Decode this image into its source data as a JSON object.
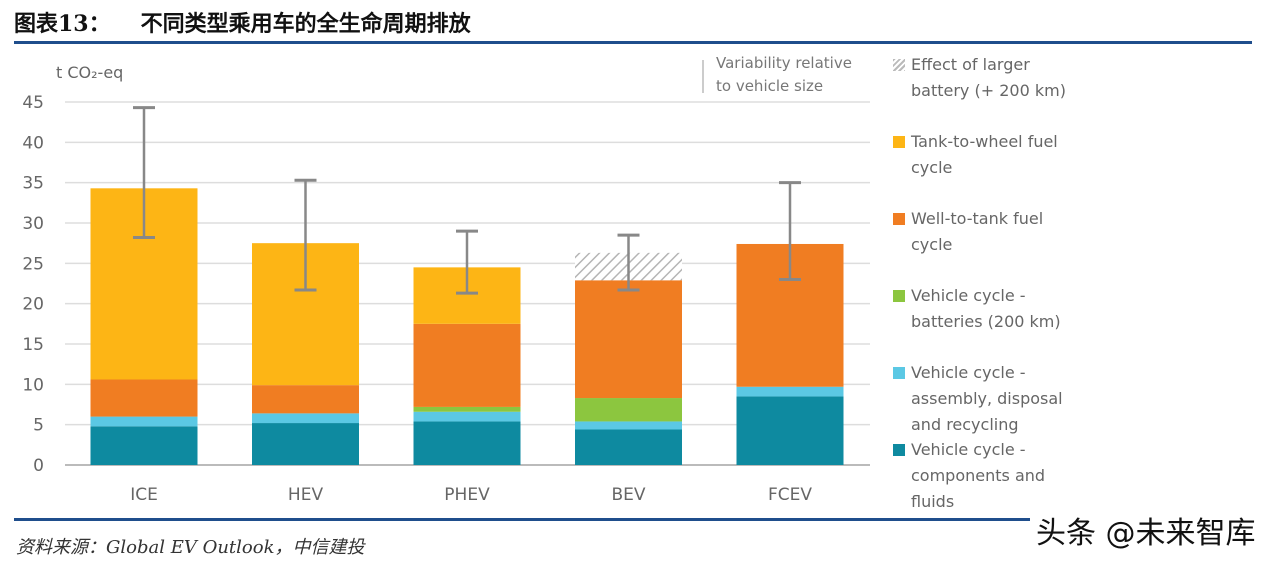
{
  "header": {
    "figure_label": "图表13：",
    "title": "不同类型乘用车的全生命周期排放"
  },
  "source": "资料来源：Global EV Outlook，中信建投",
  "watermark": "头条 @未来智库",
  "chart_data": {
    "type": "bar",
    "stacked": true,
    "title": "",
    "ylabel": "t CO₂-eq",
    "xlabel": "",
    "ylim": [
      0,
      45
    ],
    "yticks": [
      0,
      5,
      10,
      15,
      20,
      25,
      30,
      35,
      40,
      45
    ],
    "grid": true,
    "legend_position": "right",
    "categories": [
      "ICE",
      "HEV",
      "PHEV",
      "BEV",
      "FCEV"
    ],
    "series": [
      {
        "name": "Vehicle cycle -\ncomponents and\nfluids",
        "color": "#0e8aa0",
        "values": [
          4.8,
          5.2,
          5.4,
          4.4,
          8.5
        ]
      },
      {
        "name": "Vehicle cycle -\nassembly, disposal\nand recycling",
        "color": "#5bc8e4",
        "values": [
          1.2,
          1.2,
          1.2,
          1.0,
          1.2
        ]
      },
      {
        "name": "Vehicle cycle -\nbatteries (200 km)",
        "color": "#8cc63f",
        "values": [
          0,
          0,
          0.6,
          2.9,
          0
        ]
      },
      {
        "name": "Well-to-tank fuel\ncycle",
        "color": "#f07d22",
        "values": [
          4.6,
          3.5,
          10.3,
          14.6,
          17.7
        ]
      },
      {
        "name": "Tank-to-wheel fuel\ncycle",
        "color": "#fdb515",
        "values": [
          23.7,
          17.6,
          7.0,
          0,
          0
        ]
      },
      {
        "name": "Effect of larger\nbattery (+ 200 km)",
        "color": "hatch",
        "values": [
          0,
          0,
          0,
          3.4,
          0
        ]
      }
    ],
    "error_bars": {
      "label": "Variability relative\nto vehicle size",
      "low": [
        28.2,
        21.7,
        21.3,
        21.7,
        23.0
      ],
      "high": [
        44.3,
        35.3,
        29.0,
        28.5,
        35.0
      ]
    }
  }
}
